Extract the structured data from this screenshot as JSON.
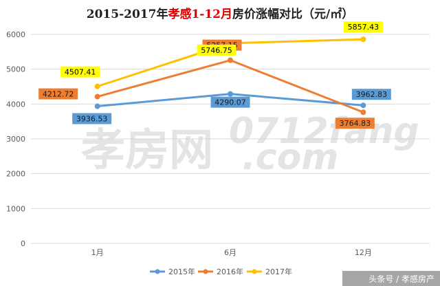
{
  "chart_data": {
    "type": "line",
    "title_prefix": "2015-2017年",
    "title_highlight": "孝感1-12月",
    "title_suffix": "房价涨幅对比（元/㎡）",
    "categories": [
      "1月",
      "6月",
      "12月"
    ],
    "ylim": [
      0,
      6000
    ],
    "yticks": [
      0,
      1000,
      2000,
      3000,
      4000,
      5000,
      6000
    ],
    "grid": true,
    "legend_position": "bottom",
    "series": [
      {
        "name": "2015年",
        "color": "#5b9bd5",
        "values": [
          3936.53,
          4290.07,
          3962.83
        ]
      },
      {
        "name": "2016年",
        "color": "#ed7d31",
        "values": [
          4212.72,
          5257.15,
          3764.83
        ]
      },
      {
        "name": "2017年",
        "color": "#ffc000",
        "values": [
          4507.41,
          5746.75,
          5857.43
        ]
      }
    ],
    "data_labels": [
      [
        "3936.53",
        "4290.07",
        "3962.83"
      ],
      [
        "4212.72",
        "5257.15",
        "3764.83"
      ],
      [
        "4507.41",
        "5746.75",
        "5857.43"
      ]
    ]
  },
  "colors": {
    "title": "#1f1f1f",
    "title_highlight": "#e00000",
    "grid": "#d9d9d9",
    "label_2017_fill": "#ffff00"
  },
  "watermark": {
    "text1": "孝房网",
    "text2": "0712fang",
    "text3": ".com"
  },
  "footer": {
    "text": "头条号 / 孝感房产"
  }
}
